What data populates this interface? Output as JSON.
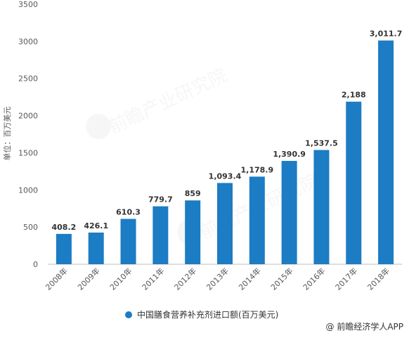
{
  "chart_data": {
    "type": "bar",
    "categories": [
      "2008年",
      "2009年",
      "2010年",
      "2011年",
      "2012年",
      "2013年",
      "2014年",
      "2015年",
      "2016年",
      "2017年",
      "2018年"
    ],
    "values": [
      408.2,
      426.1,
      610.3,
      779.7,
      859,
      1093.4,
      1178.9,
      1390.9,
      1537.5,
      2188,
      3011.7
    ],
    "data_labels": [
      "408.2",
      "426.1",
      "610.3",
      "779.7",
      "859",
      "1,093.4",
      "1,178.9",
      "1,390.9",
      "1,537.5",
      "2,188",
      "3,011.7"
    ],
    "yticks": [
      0,
      500,
      1000,
      1500,
      2000,
      2500,
      3000,
      3500
    ],
    "ylim": [
      0,
      3500
    ],
    "ylabel": "单位：百万美元",
    "series": [
      {
        "name": "中国膳食营养补充剂进口额(百万美元)",
        "color": "#1C7CC4"
      }
    ],
    "legend_position": "bottom",
    "grid": false
  },
  "source": "@ 前瞻经济学人APP"
}
